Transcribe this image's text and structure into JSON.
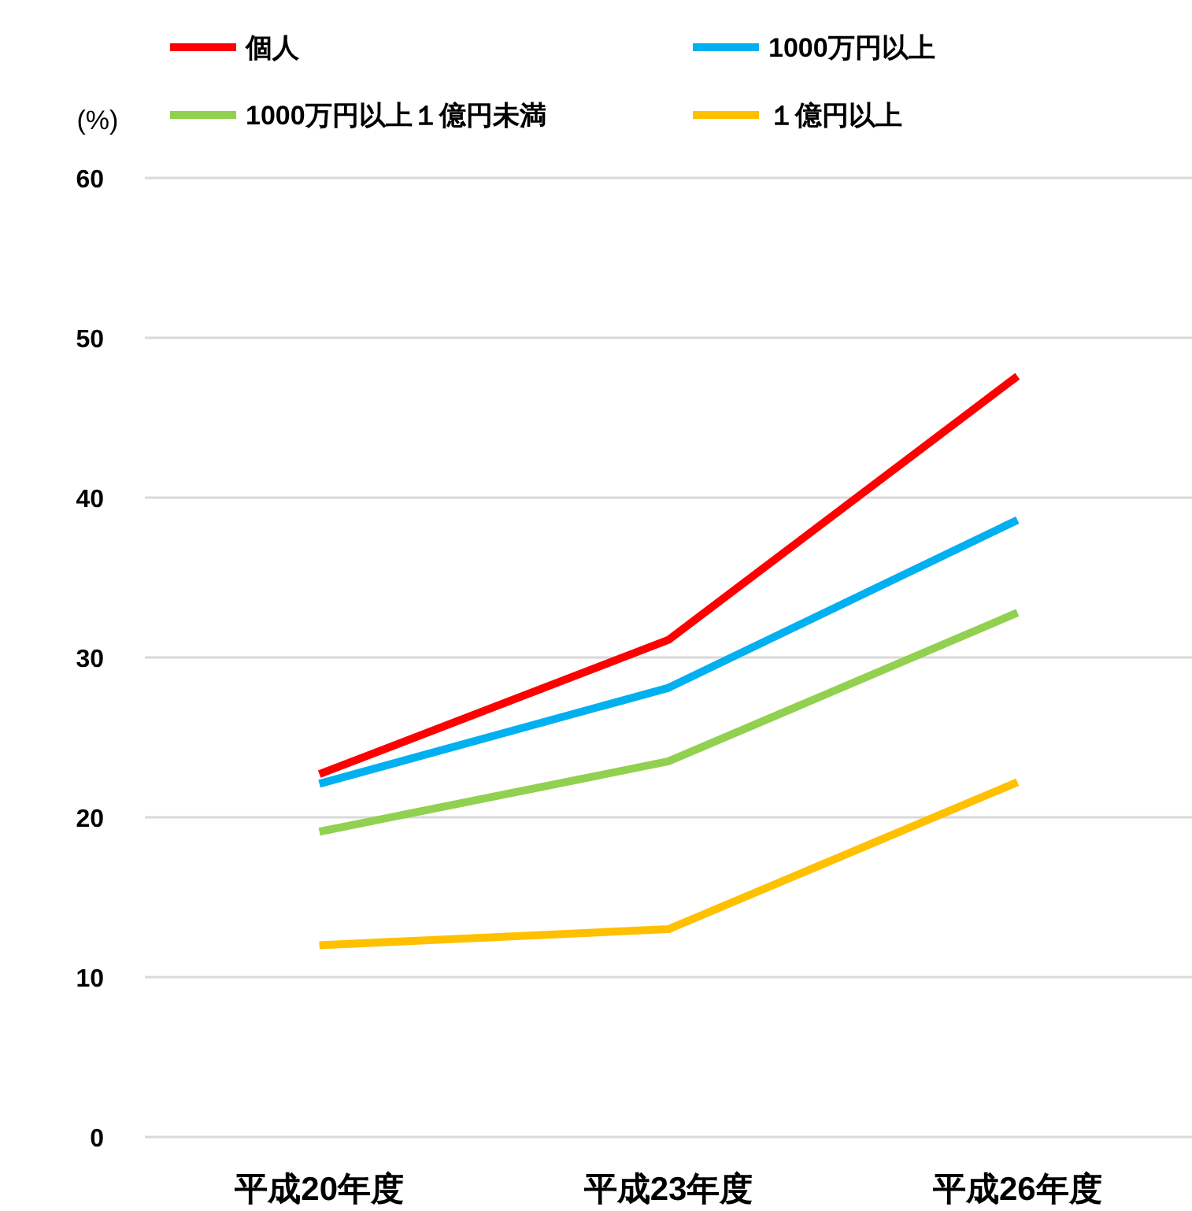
{
  "chart_data": {
    "type": "line",
    "ylabel": "(%)",
    "categories": [
      "平成20年度",
      "平成23年度",
      "平成26年度"
    ],
    "series": [
      {
        "name": "個人",
        "color": "#ff0000",
        "values": [
          22.7,
          31.1,
          47.6
        ]
      },
      {
        "name": "1000万円以上",
        "color": "#00b0f0",
        "values": [
          22.1,
          28.1,
          38.6
        ]
      },
      {
        "name": "1000万円以上１億円未満",
        "color": "#92d050",
        "values": [
          19.1,
          23.5,
          32.8
        ]
      },
      {
        "name": "１億円以上",
        "color": "#ffc000",
        "values": [
          12.0,
          13.0,
          22.2
        ]
      }
    ],
    "ylim": [
      0,
      60
    ],
    "yticks": [
      0,
      10,
      20,
      30,
      40,
      50,
      60
    ],
    "grid": "y",
    "legend": "top",
    "marker": "none",
    "line_style": "solid"
  }
}
